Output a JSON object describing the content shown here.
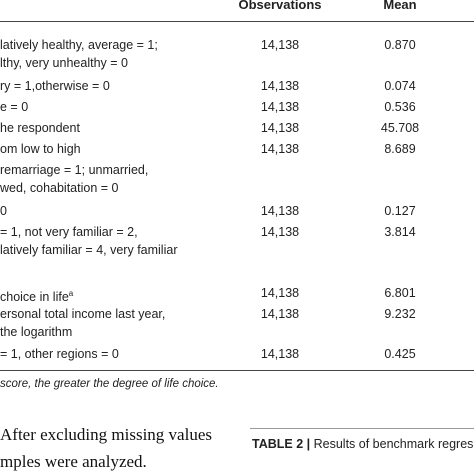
{
  "table": {
    "header": [
      "",
      "Observations",
      "Mean"
    ],
    "rows": [
      {
        "desc": [
          "latively healthy, average = 1;",
          "lthy, very unhealthy = 0"
        ],
        "obs": "14,138",
        "mean": "0.870"
      },
      {
        "desc": [
          "ry = 1,otherwise = 0"
        ],
        "obs": "14,138",
        "mean": "0.074"
      },
      {
        "desc": [
          "e = 0"
        ],
        "obs": "14,138",
        "mean": "0.536"
      },
      {
        "desc": [
          "he respondent"
        ],
        "obs": "14,138",
        "mean": "45.708"
      },
      {
        "desc": [
          "om low to high"
        ],
        "obs": "14,138",
        "mean": "8.689"
      },
      {
        "desc": [
          "remarriage = 1; unmarried,",
          "wed, cohabitation = 0"
        ]
      },
      {
        "desc": [
          "0"
        ],
        "obs": "14,138",
        "mean": "0.127"
      },
      {
        "desc": [
          "= 1, not very familiar = 2,",
          "latively familiar = 4, very familiar"
        ],
        "obs": "14,138",
        "mean": "3.814"
      },
      {
        "desc": [
          "choice in life"
        ],
        "sup": "a",
        "obs": "14,138",
        "mean": "6.801"
      },
      {
        "desc": [
          "ersonal total income last year,",
          "the logarithm"
        ],
        "obs": "14,138",
        "mean": "9.232"
      },
      {
        "desc": [
          "= 1, other regions = 0"
        ],
        "obs": "14,138",
        "mean": "0.425"
      }
    ],
    "footnote": "score, the greater the degree of life choice."
  },
  "body_text": [
    "After excluding missing values",
    "mples were analyzed."
  ],
  "table2_caption": {
    "label": "TABLE 2 |",
    "text": "Results of benchmark regres"
  }
}
